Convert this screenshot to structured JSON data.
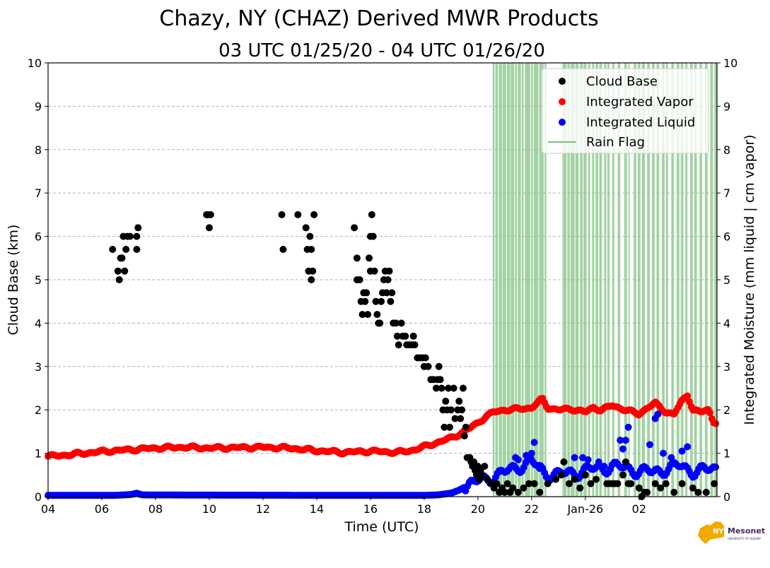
{
  "chart_data": {
    "type": "scatter",
    "title": "Chazy, NY (CHAZ) Derived MWR Products",
    "subtitle": "03 UTC 01/25/20 - 04 UTC 01/26/20",
    "xlabel": "Time (UTC)",
    "ylabel_left": "Cloud Base (km)",
    "ylabel_right": "Integrated Moisture (mm liquid | cm vapor)",
    "x_unit": "hours since 04 UTC 01/25/20",
    "xlim": [
      0,
      24.9
    ],
    "ylim": [
      0,
      10
    ],
    "x_ticks": [
      {
        "x": 0,
        "label": "04"
      },
      {
        "x": 2,
        "label": "06"
      },
      {
        "x": 4,
        "label": "08"
      },
      {
        "x": 6,
        "label": "10"
      },
      {
        "x": 8,
        "label": "12"
      },
      {
        "x": 10,
        "label": "14"
      },
      {
        "x": 12,
        "label": "16"
      },
      {
        "x": 14,
        "label": "18"
      },
      {
        "x": 16,
        "label": "20"
      },
      {
        "x": 18,
        "label": "22"
      },
      {
        "x": 20,
        "label": "Jan-26"
      },
      {
        "x": 22,
        "label": "02"
      }
    ],
    "y_ticks": [
      "0",
      "1",
      "2",
      "3",
      "4",
      "5",
      "6",
      "7",
      "8",
      "9",
      "10"
    ],
    "grid": true,
    "legend_position": "top-right",
    "legend": [
      {
        "label": "Cloud Base",
        "color": "#000000",
        "kind": "marker"
      },
      {
        "label": "Integrated Vapor",
        "color": "#ff0000",
        "kind": "marker"
      },
      {
        "label": "Integrated Liquid",
        "color": "#0000ff",
        "kind": "marker"
      },
      {
        "label": "Rain Flag",
        "color": "#7cbf7c",
        "kind": "line"
      }
    ],
    "series": [
      {
        "name": "Cloud Base",
        "color": "#000000",
        "points": [
          [
            2.4,
            5.7
          ],
          [
            2.6,
            5.2
          ],
          [
            2.65,
            5.0
          ],
          [
            2.7,
            5.5
          ],
          [
            2.75,
            5.5
          ],
          [
            2.8,
            6.0
          ],
          [
            2.85,
            5.2
          ],
          [
            2.9,
            5.7
          ],
          [
            2.95,
            6.0
          ],
          [
            3.05,
            6.0
          ],
          [
            3.3,
            5.7
          ],
          [
            3.35,
            6.2
          ],
          [
            3.3,
            6.0
          ],
          [
            5.9,
            6.5
          ],
          [
            5.95,
            6.5
          ],
          [
            6.0,
            6.2
          ],
          [
            6.05,
            6.5
          ],
          [
            8.7,
            6.5
          ],
          [
            8.75,
            5.7
          ],
          [
            9.3,
            6.5
          ],
          [
            9.6,
            6.2
          ],
          [
            9.65,
            5.7
          ],
          [
            9.7,
            5.2
          ],
          [
            9.75,
            6.0
          ],
          [
            9.8,
            5.0
          ],
          [
            9.8,
            5.7
          ],
          [
            9.85,
            5.2
          ],
          [
            9.9,
            6.5
          ],
          [
            11.4,
            6.2
          ],
          [
            11.5,
            5.5
          ],
          [
            11.5,
            5.0
          ],
          [
            11.6,
            5.0
          ],
          [
            11.65,
            4.5
          ],
          [
            11.7,
            4.2
          ],
          [
            11.75,
            4.7
          ],
          [
            11.8,
            4.5
          ],
          [
            11.85,
            4.7
          ],
          [
            11.9,
            4.2
          ],
          [
            11.95,
            5.5
          ],
          [
            12.0,
            5.2
          ],
          [
            12.0,
            6.0
          ],
          [
            12.05,
            6.5
          ],
          [
            12.1,
            6.0
          ],
          [
            12.15,
            5.2
          ],
          [
            12.2,
            4.5
          ],
          [
            12.25,
            4.2
          ],
          [
            12.3,
            4.0
          ],
          [
            12.35,
            4.0
          ],
          [
            12.4,
            4.5
          ],
          [
            12.45,
            4.7
          ],
          [
            12.5,
            5.0
          ],
          [
            12.55,
            5.2
          ],
          [
            12.6,
            4.7
          ],
          [
            12.65,
            5.0
          ],
          [
            12.7,
            5.2
          ],
          [
            12.75,
            4.5
          ],
          [
            12.8,
            4.7
          ],
          [
            12.85,
            4.0
          ],
          [
            12.95,
            4.0
          ],
          [
            13.0,
            3.7
          ],
          [
            13.05,
            3.5
          ],
          [
            13.15,
            4.0
          ],
          [
            13.2,
            3.7
          ],
          [
            13.3,
            3.7
          ],
          [
            13.35,
            3.5
          ],
          [
            13.45,
            3.5
          ],
          [
            13.55,
            3.5
          ],
          [
            13.6,
            3.7
          ],
          [
            13.65,
            3.5
          ],
          [
            13.75,
            3.2
          ],
          [
            13.85,
            3.2
          ],
          [
            13.95,
            3.2
          ],
          [
            14.0,
            3.0
          ],
          [
            14.05,
            3.2
          ],
          [
            14.15,
            3.0
          ],
          [
            14.25,
            2.7
          ],
          [
            14.35,
            2.7
          ],
          [
            14.45,
            2.5
          ],
          [
            14.5,
            2.7
          ],
          [
            14.55,
            3.0
          ],
          [
            14.6,
            2.7
          ],
          [
            14.65,
            2.5
          ],
          [
            14.7,
            2.0
          ],
          [
            14.75,
            1.6
          ],
          [
            14.8,
            2.2
          ],
          [
            14.85,
            2.0
          ],
          [
            14.9,
            2.5
          ],
          [
            14.95,
            1.6
          ],
          [
            15.0,
            2.0
          ],
          [
            15.1,
            2.5
          ],
          [
            15.15,
            1.8
          ],
          [
            15.25,
            2.0
          ],
          [
            15.3,
            2.2
          ],
          [
            15.35,
            1.8
          ],
          [
            15.4,
            2.0
          ],
          [
            15.45,
            2.5
          ],
          [
            15.5,
            1.4
          ],
          [
            15.55,
            1.6
          ],
          [
            15.6,
            0.9
          ],
          [
            15.7,
            0.9
          ],
          [
            15.75,
            0.8
          ],
          [
            15.8,
            0.7
          ],
          [
            15.85,
            0.8
          ],
          [
            15.9,
            0.6
          ],
          [
            15.95,
            0.5
          ],
          [
            16.0,
            0.7
          ],
          [
            16.05,
            0.4
          ],
          [
            16.1,
            0.6
          ],
          [
            16.15,
            0.5
          ],
          [
            16.25,
            0.7
          ],
          [
            16.35,
            0.4
          ],
          [
            16.5,
            0.3
          ],
          [
            16.6,
            0.2
          ],
          [
            16.7,
            0.3
          ],
          [
            16.8,
            0.1
          ],
          [
            16.9,
            0.2
          ],
          [
            17.0,
            0.1
          ],
          [
            17.1,
            0.3
          ],
          [
            17.2,
            0.1
          ],
          [
            17.3,
            0.2
          ],
          [
            17.5,
            0.1
          ],
          [
            17.7,
            0.2
          ],
          [
            17.9,
            0.3
          ],
          [
            18.1,
            0.3
          ],
          [
            18.3,
            0.1
          ],
          [
            18.6,
            0.3
          ],
          [
            18.9,
            0.4
          ],
          [
            19.1,
            0.5
          ],
          [
            19.2,
            0.8
          ],
          [
            19.4,
            0.3
          ],
          [
            19.6,
            0.4
          ],
          [
            19.8,
            0.2
          ],
          [
            20.0,
            0.5
          ],
          [
            20.2,
            0.3
          ],
          [
            20.4,
            0.4
          ],
          [
            20.8,
            0.3
          ],
          [
            20.9,
            0.3
          ],
          [
            21.0,
            0.3
          ],
          [
            21.1,
            0.3
          ],
          [
            21.2,
            0.3
          ],
          [
            21.4,
            0.5
          ],
          [
            21.5,
            0.8
          ],
          [
            21.6,
            0.3
          ],
          [
            21.7,
            0.3
          ],
          [
            22.0,
            0.2
          ],
          [
            22.1,
            0.0
          ],
          [
            22.2,
            0.1
          ],
          [
            22.3,
            0.1
          ],
          [
            22.6,
            0.3
          ],
          [
            22.8,
            0.2
          ],
          [
            23.0,
            0.3
          ],
          [
            23.3,
            0.1
          ],
          [
            23.6,
            0.3
          ],
          [
            24.0,
            0.2
          ],
          [
            24.2,
            0.1
          ],
          [
            24.5,
            0.1
          ],
          [
            24.8,
            0.3
          ]
        ]
      },
      {
        "name": "Integrated Vapor",
        "color": "#ff0000",
        "curve": [
          [
            0,
            0.93
          ],
          [
            0.5,
            0.95
          ],
          [
            1.0,
            0.98
          ],
          [
            1.5,
            1.01
          ],
          [
            2.0,
            1.04
          ],
          [
            2.5,
            1.06
          ],
          [
            3.0,
            1.08
          ],
          [
            3.5,
            1.1
          ],
          [
            4.0,
            1.12
          ],
          [
            5.0,
            1.14
          ],
          [
            6.0,
            1.12
          ],
          [
            7.0,
            1.13
          ],
          [
            8.0,
            1.14
          ],
          [
            9.0,
            1.12
          ],
          [
            10.0,
            1.06
          ],
          [
            11.0,
            1.02
          ],
          [
            12.0,
            1.05
          ],
          [
            13.0,
            1.02
          ],
          [
            13.5,
            1.06
          ],
          [
            14.0,
            1.15
          ],
          [
            14.5,
            1.25
          ],
          [
            15.0,
            1.35
          ],
          [
            15.5,
            1.5
          ],
          [
            16.0,
            1.7
          ],
          [
            16.3,
            1.85
          ],
          [
            16.6,
            1.95
          ],
          [
            17.0,
            2.0
          ],
          [
            17.5,
            2.02
          ],
          [
            18.0,
            2.05
          ],
          [
            18.2,
            2.15
          ],
          [
            18.4,
            2.25
          ],
          [
            18.6,
            2.05
          ],
          [
            19.0,
            2.0
          ],
          [
            19.5,
            2.02
          ],
          [
            20.0,
            1.95
          ],
          [
            20.3,
            2.05
          ],
          [
            20.6,
            2.0
          ],
          [
            21.0,
            2.1
          ],
          [
            21.5,
            2.0
          ],
          [
            22.0,
            1.9
          ],
          [
            22.3,
            2.05
          ],
          [
            22.6,
            2.15
          ],
          [
            23.0,
            1.95
          ],
          [
            23.3,
            1.9
          ],
          [
            23.6,
            2.2
          ],
          [
            23.8,
            2.35
          ],
          [
            24.0,
            2.0
          ],
          [
            24.3,
            1.95
          ],
          [
            24.6,
            2.0
          ],
          [
            24.75,
            1.75
          ],
          [
            24.9,
            1.7
          ]
        ]
      },
      {
        "name": "Integrated Liquid",
        "color": "#0000ff",
        "curve": [
          [
            0,
            0.03
          ],
          [
            2.5,
            0.03
          ],
          [
            3.1,
            0.05
          ],
          [
            3.3,
            0.08
          ],
          [
            3.5,
            0.04
          ],
          [
            10.0,
            0.03
          ],
          [
            14.0,
            0.03
          ],
          [
            14.5,
            0.04
          ],
          [
            15.0,
            0.08
          ],
          [
            15.3,
            0.15
          ],
          [
            15.6,
            0.25
          ],
          [
            16.0,
            0.35
          ],
          [
            16.5,
            0.45
          ],
          [
            17.0,
            0.55
          ],
          [
            17.5,
            0.7
          ],
          [
            18.0,
            0.8
          ],
          [
            18.5,
            0.55
          ],
          [
            19.0,
            0.5
          ],
          [
            19.5,
            0.55
          ],
          [
            20.0,
            0.6
          ],
          [
            20.5,
            0.65
          ],
          [
            21.0,
            0.7
          ],
          [
            21.5,
            0.65
          ],
          [
            22.0,
            0.6
          ],
          [
            22.5,
            0.55
          ],
          [
            23.0,
            0.65
          ],
          [
            23.5,
            0.7
          ],
          [
            24.0,
            0.6
          ],
          [
            24.5,
            0.6
          ],
          [
            24.9,
            0.65
          ]
        ],
        "spikes": [
          [
            17.4,
            0.9
          ],
          [
            17.5,
            0.85
          ],
          [
            17.8,
            0.95
          ],
          [
            18.0,
            1.0
          ],
          [
            18.1,
            1.25
          ],
          [
            18.3,
            0.65
          ],
          [
            19.6,
            0.9
          ],
          [
            19.9,
            0.9
          ],
          [
            20.1,
            0.85
          ],
          [
            20.5,
            0.8
          ],
          [
            20.7,
            0.7
          ],
          [
            21.3,
            1.3
          ],
          [
            21.4,
            1.1
          ],
          [
            21.5,
            1.3
          ],
          [
            21.6,
            1.6
          ],
          [
            22.4,
            1.2
          ],
          [
            22.6,
            1.8
          ],
          [
            22.7,
            1.9
          ],
          [
            22.9,
            1.0
          ],
          [
            23.2,
            0.9
          ],
          [
            23.6,
            1.05
          ],
          [
            23.8,
            1.15
          ]
        ]
      }
    ],
    "rain_flag_intervals": [
      [
        16.55,
        16.62
      ],
      [
        16.65,
        16.75
      ],
      [
        16.78,
        16.9
      ],
      [
        16.92,
        17.05
      ],
      [
        17.08,
        17.2
      ],
      [
        17.22,
        17.35
      ],
      [
        17.38,
        17.45
      ],
      [
        17.48,
        17.6
      ],
      [
        17.63,
        17.7
      ],
      [
        17.75,
        17.95
      ],
      [
        17.98,
        18.05
      ],
      [
        18.08,
        18.25
      ],
      [
        18.28,
        18.45
      ],
      [
        18.48,
        18.55
      ],
      [
        19.15,
        19.3
      ],
      [
        19.33,
        19.42
      ],
      [
        19.45,
        19.6
      ],
      [
        19.63,
        19.75
      ],
      [
        19.8,
        19.9
      ],
      [
        19.93,
        20.05
      ],
      [
        20.1,
        20.18
      ],
      [
        20.25,
        20.33
      ],
      [
        20.38,
        20.48
      ],
      [
        20.52,
        20.62
      ],
      [
        20.7,
        20.78
      ],
      [
        20.82,
        20.9
      ],
      [
        21.0,
        21.08
      ],
      [
        21.2,
        21.3
      ],
      [
        21.45,
        21.55
      ],
      [
        21.6,
        21.65
      ],
      [
        21.8,
        21.9
      ],
      [
        21.95,
        22.05
      ],
      [
        22.1,
        22.22
      ],
      [
        22.3,
        22.4
      ],
      [
        22.48,
        22.58
      ],
      [
        22.65,
        22.75
      ],
      [
        22.85,
        22.95
      ],
      [
        23.0,
        23.08
      ],
      [
        23.2,
        23.3
      ],
      [
        23.4,
        23.5
      ],
      [
        23.55,
        23.65
      ],
      [
        23.72,
        23.8
      ],
      [
        23.9,
        24.0
      ],
      [
        24.05,
        24.15
      ],
      [
        24.25,
        24.35
      ],
      [
        24.45,
        24.55
      ],
      [
        24.65,
        24.75
      ],
      [
        24.8,
        24.9
      ]
    ]
  },
  "logo": {
    "text": "NYS Mesonet",
    "subtext": "UNIVERSITY AT ALBANY"
  }
}
